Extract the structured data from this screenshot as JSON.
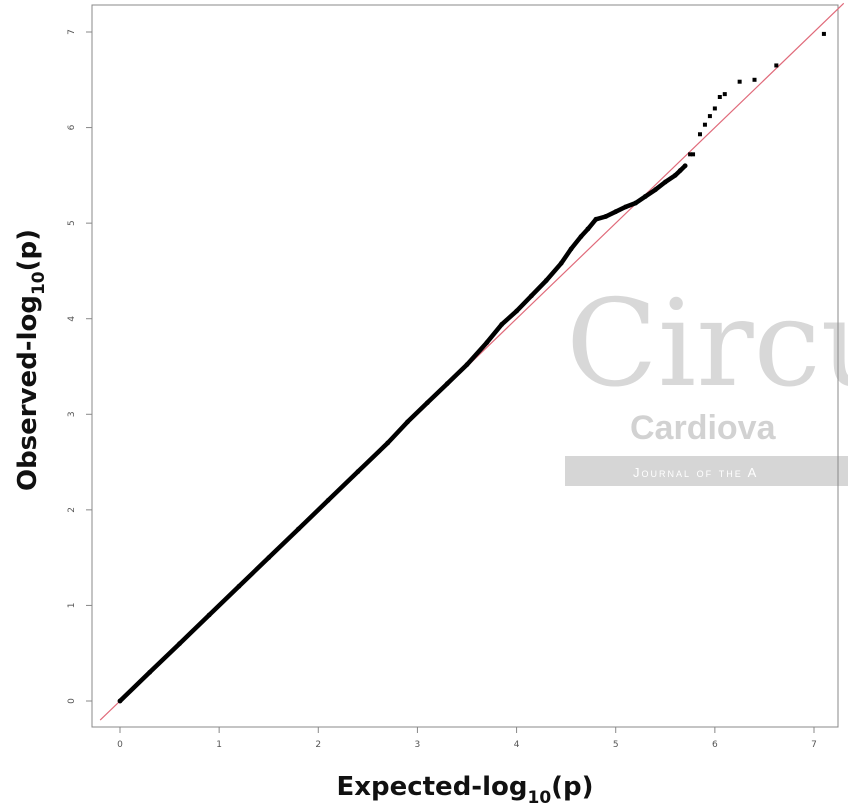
{
  "chart_data": {
    "type": "scatter",
    "title": "",
    "xlabel": "Expected-log",
    "xlabel_sub": "10",
    "xlabel_tail": "(p)",
    "ylabel": "Observed-log",
    "ylabel_sub": "10",
    "ylabel_tail": "(p)",
    "xlim": [
      -0.2,
      7.3
    ],
    "ylim": [
      -0.2,
      7.3
    ],
    "xticks": [
      0,
      1,
      2,
      3,
      4,
      5,
      6,
      7
    ],
    "yticks": [
      0,
      1,
      2,
      3,
      4,
      5,
      6,
      7
    ],
    "grid": false,
    "reference_line": {
      "slope": 1,
      "intercept": 0,
      "color": "#e06a7a"
    },
    "series": [
      {
        "color": "#000000",
        "x": [
          0,
          0.3,
          0.6,
          0.9,
          1.2,
          1.5,
          1.8,
          2.1,
          2.4,
          2.7,
          2.9,
          3.1,
          3.3,
          3.5,
          3.7,
          3.85,
          4.0,
          4.15,
          4.3,
          4.45,
          4.55,
          4.65,
          4.72,
          4.8,
          4.9,
          5.0,
          5.1,
          5.2,
          5.3,
          5.4,
          5.5,
          5.6,
          5.65,
          5.7
        ],
        "y": [
          0,
          0.3,
          0.6,
          0.9,
          1.2,
          1.5,
          1.8,
          2.1,
          2.4,
          2.7,
          2.92,
          3.12,
          3.32,
          3.52,
          3.75,
          3.94,
          4.08,
          4.24,
          4.4,
          4.58,
          4.73,
          4.86,
          4.94,
          5.04,
          5.07,
          5.12,
          5.17,
          5.21,
          5.28,
          5.35,
          5.43,
          5.5,
          5.55,
          5.6
        ]
      },
      {
        "color": "#000000",
        "x": [
          5.75,
          5.78,
          5.85,
          5.9,
          5.95,
          6.0,
          6.05,
          6.1,
          6.25,
          6.4,
          6.62,
          7.1
        ],
        "y": [
          5.72,
          5.72,
          5.93,
          6.03,
          6.12,
          6.2,
          6.32,
          6.35,
          6.48,
          6.5,
          6.65,
          6.98
        ]
      }
    ]
  },
  "watermark": {
    "title": "Circu",
    "subtitle": "Cardiova",
    "band": "Journal of the A"
  }
}
